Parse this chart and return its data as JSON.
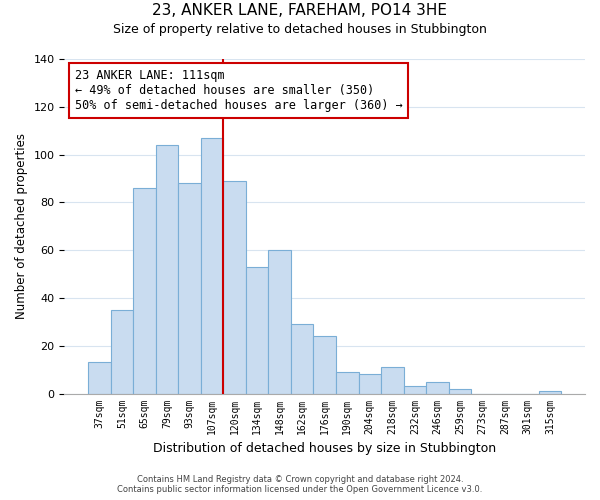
{
  "title": "23, ANKER LANE, FAREHAM, PO14 3HE",
  "subtitle": "Size of property relative to detached houses in Stubbington",
  "xlabel": "Distribution of detached houses by size in Stubbington",
  "ylabel": "Number of detached properties",
  "bar_labels": [
    "37sqm",
    "51sqm",
    "65sqm",
    "79sqm",
    "93sqm",
    "107sqm",
    "120sqm",
    "134sqm",
    "148sqm",
    "162sqm",
    "176sqm",
    "190sqm",
    "204sqm",
    "218sqm",
    "232sqm",
    "246sqm",
    "259sqm",
    "273sqm",
    "287sqm",
    "301sqm",
    "315sqm"
  ],
  "bar_values": [
    13,
    35,
    86,
    104,
    88,
    107,
    89,
    53,
    60,
    29,
    24,
    9,
    8,
    11,
    3,
    5,
    2,
    0,
    0,
    0,
    1
  ],
  "bar_color": "#c9dcf0",
  "bar_edge_color": "#7aaed6",
  "vline_x": 5.5,
  "vline_color": "#cc0000",
  "annotation_title": "23 ANKER LANE: 111sqm",
  "annotation_line1": "← 49% of detached houses are smaller (350)",
  "annotation_line2": "50% of semi-detached houses are larger (360) →",
  "annotation_box_color": "#ffffff",
  "annotation_box_edge": "#cc0000",
  "ylim": [
    0,
    140
  ],
  "yticks": [
    0,
    20,
    40,
    60,
    80,
    100,
    120,
    140
  ],
  "footer1": "Contains HM Land Registry data © Crown copyright and database right 2024.",
  "footer2": "Contains public sector information licensed under the Open Government Licence v3.0.",
  "bg_color": "#ffffff",
  "grid_color": "#d8e4f0"
}
